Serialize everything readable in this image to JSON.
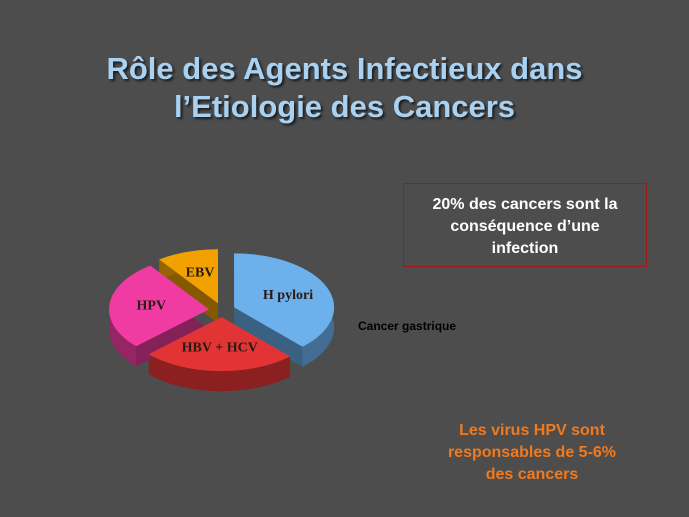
{
  "title": "Rôle des Agents Infectieux dans\nl’Etiologie des Cancers",
  "chart_data": {
    "type": "pie",
    "categories": [
      "H pylori",
      "HBV + HCV",
      "HPV",
      "EBV"
    ],
    "values": [
      38,
      25,
      27,
      10
    ],
    "colors": [
      "#6cb0ec",
      "#e23434",
      "#f03ca2",
      "#f2a200"
    ],
    "annotation": "Cancer gastrique"
  },
  "box_text": "20% des cancers sont la\nconséquence d’une\ninfection",
  "footer_text": "Les virus HPV  sont\nresponsables de 5-6%\ndes cancers"
}
